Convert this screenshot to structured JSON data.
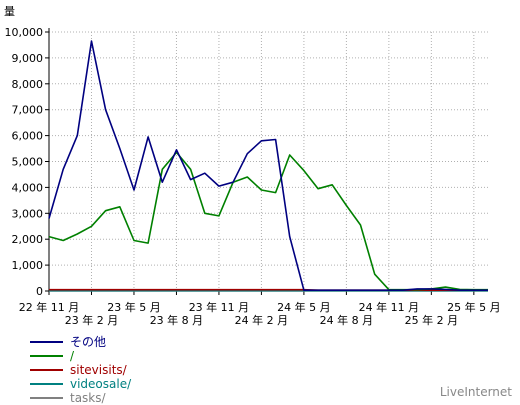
{
  "chart_data": {
    "type": "line",
    "ylabel": "量",
    "ylim": [
      0,
      10000
    ],
    "yticks": [
      0,
      1000,
      2000,
      3000,
      4000,
      5000,
      6000,
      7000,
      8000,
      9000,
      10000
    ],
    "ytick_labels": [
      "0",
      "1,000",
      "2,000",
      "3,000",
      "4,000",
      "5,000",
      "6,000",
      "7,000",
      "8,000",
      "9,000",
      "10,000"
    ],
    "x_index_range": [
      0,
      31
    ],
    "xticks_top": [
      {
        "i": 0,
        "label": "22 年 11 月"
      },
      {
        "i": 6,
        "label": "23 年 5 月"
      },
      {
        "i": 12,
        "label": "23 年 11 月"
      },
      {
        "i": 18,
        "label": "24 年 5 月"
      },
      {
        "i": 24,
        "label": "24 年 11 月"
      },
      {
        "i": 30,
        "label": "25 年 5 月"
      }
    ],
    "xticks_bottom": [
      {
        "i": 3,
        "label": "23 年 2 月"
      },
      {
        "i": 9,
        "label": "23 年 8 月"
      },
      {
        "i": 15,
        "label": "24 年 2 月"
      },
      {
        "i": 21,
        "label": "24 年 8 月"
      },
      {
        "i": 27,
        "label": "25 年 2 月"
      }
    ],
    "grid": true,
    "legend_position": "bottom-left",
    "series": [
      {
        "name": "その他",
        "color": "#000080",
        "values": [
          2800,
          4700,
          6000,
          9650,
          7000,
          5500,
          3900,
          5950,
          4200,
          5450,
          4300,
          4550,
          4050,
          4200,
          5300,
          5800,
          5850,
          2100,
          30,
          30,
          30,
          30,
          30,
          30,
          30,
          30,
          80,
          80,
          60,
          30,
          30,
          30
        ]
      },
      {
        "name": "/",
        "color": "#008000",
        "values": [
          2100,
          1950,
          2200,
          2500,
          3100,
          3250,
          1950,
          1850,
          4700,
          5350,
          4700,
          3000,
          2900,
          4200,
          4400,
          3900,
          3800,
          5250,
          4650,
          3950,
          4100,
          3300,
          2550,
          650,
          50,
          50,
          50,
          80,
          150,
          60,
          50,
          50
        ]
      },
      {
        "name": "sitevisits/",
        "color": "#a00000",
        "values": [
          50,
          50,
          50,
          50,
          50,
          50,
          50,
          50,
          50,
          50,
          50,
          50,
          50,
          50,
          50,
          50,
          50,
          50,
          50,
          30,
          30,
          30,
          30,
          30,
          30,
          30,
          30,
          30,
          30,
          30,
          30,
          30
        ]
      },
      {
        "name": "videosale/",
        "color": "#008080",
        "values": [
          10,
          10,
          10,
          10,
          10,
          10,
          10,
          10,
          10,
          10,
          10,
          10,
          10,
          10,
          10,
          10,
          10,
          10,
          10,
          10,
          10,
          10,
          10,
          10,
          10,
          10,
          10,
          10,
          10,
          10,
          10,
          10
        ]
      },
      {
        "name": "tasks/",
        "color": "#808080",
        "values": [
          5,
          5,
          5,
          5,
          5,
          5,
          5,
          5,
          5,
          5,
          5,
          5,
          5,
          5,
          5,
          5,
          5,
          5,
          5,
          5,
          5,
          5,
          5,
          5,
          5,
          5,
          5,
          5,
          5,
          5,
          5,
          5
        ]
      }
    ]
  },
  "brand": "LiveInternet"
}
